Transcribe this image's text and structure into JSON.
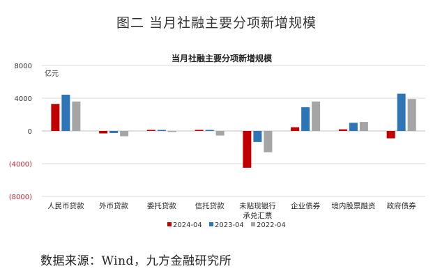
{
  "figure_title": "图二  当月社融主要分项新增规模",
  "source_text": "数据来源：Wind，九方金融研究所",
  "colors": {
    "2024-04": "#c00000",
    "2023-04": "#2e75b6",
    "2022-04": "#a5a5a5",
    "negative_tick": "#c0262f"
  },
  "chart_data": {
    "type": "bar",
    "title": "当月社融主要分项新增规模",
    "ylabel": "亿元",
    "xlabel": "",
    "ylim": [
      -8000,
      8000
    ],
    "yticks": [
      8000,
      4000,
      0,
      -4000,
      -8000
    ],
    "ytick_labels": [
      "8000",
      "4000",
      "0",
      "(4000)",
      "(8000)"
    ],
    "grid": true,
    "legend_position": "bottom",
    "categories": [
      "人民币贷款",
      "外币贷款",
      "委托贷款",
      "信托贷款",
      "未贴现银行\n承兑汇票",
      "企业债券",
      "境内股票融资",
      "政府债券"
    ],
    "series": [
      {
        "name": "2024-04",
        "values": [
          3300,
          -300,
          60,
          130,
          -4500,
          450,
          200,
          -900
        ]
      },
      {
        "name": "2023-04",
        "values": [
          4430,
          -250,
          50,
          120,
          -1350,
          2900,
          1000,
          4550
        ]
      },
      {
        "name": "2022-04",
        "values": [
          3600,
          -650,
          -40,
          -560,
          -2600,
          3600,
          1100,
          3900
        ]
      }
    ]
  }
}
